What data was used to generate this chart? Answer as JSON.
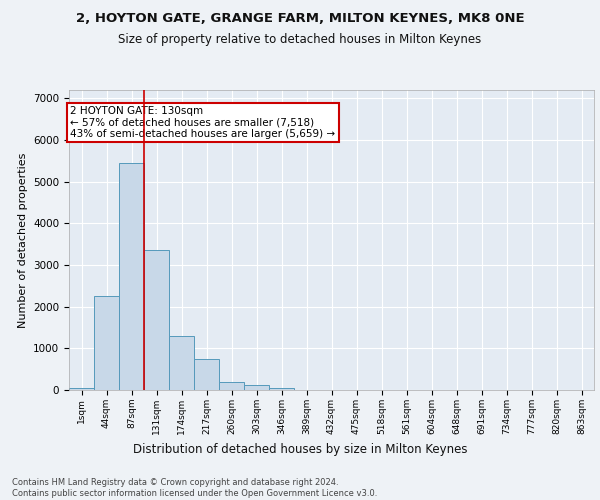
{
  "title1": "2, HOYTON GATE, GRANGE FARM, MILTON KEYNES, MK8 0NE",
  "title2": "Size of property relative to detached houses in Milton Keynes",
  "xlabel": "Distribution of detached houses by size in Milton Keynes",
  "ylabel": "Number of detached properties",
  "categories": [
    "1sqm",
    "44sqm",
    "87sqm",
    "131sqm",
    "174sqm",
    "217sqm",
    "260sqm",
    "303sqm",
    "346sqm",
    "389sqm",
    "432sqm",
    "475sqm",
    "518sqm",
    "561sqm",
    "604sqm",
    "648sqm",
    "691sqm",
    "734sqm",
    "777sqm",
    "820sqm",
    "863sqm"
  ],
  "values": [
    50,
    2250,
    5450,
    3350,
    1300,
    750,
    200,
    120,
    60,
    0,
    0,
    0,
    0,
    0,
    0,
    0,
    0,
    0,
    0,
    0,
    0
  ],
  "bar_color": "#c8d8e8",
  "bar_edge_color": "#5599bb",
  "vline_x": 2.5,
  "vline_color": "#cc0000",
  "annotation_text": "2 HOYTON GATE: 130sqm\n← 57% of detached houses are smaller (7,518)\n43% of semi-detached houses are larger (5,659) →",
  "ylim": [
    0,
    7200
  ],
  "yticks": [
    0,
    1000,
    2000,
    3000,
    4000,
    5000,
    6000,
    7000
  ],
  "footer": "Contains HM Land Registry data © Crown copyright and database right 2024.\nContains public sector information licensed under the Open Government Licence v3.0.",
  "bg_color": "#eef2f6",
  "plot_bg_color": "#e4ebf3",
  "grid_color": "#ffffff",
  "title1_fontsize": 9.5,
  "title2_fontsize": 8.5
}
